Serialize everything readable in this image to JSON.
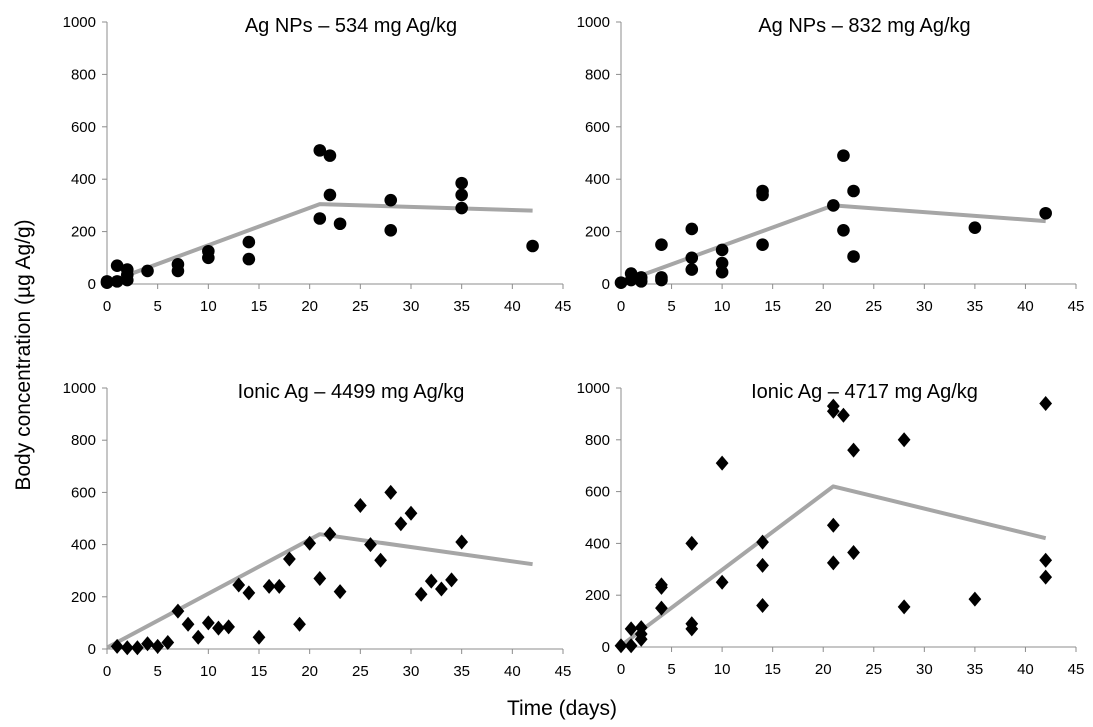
{
  "figure": {
    "ylabel": "Body concentration (µg Ag/g)",
    "xlabel": "Time (days)"
  },
  "style": {
    "model_line_color": "#a6a6a6",
    "marker_color": "#000000",
    "axis_color": "#8c8c8c"
  },
  "chart_data": [
    {
      "type": "scatter",
      "title": "Ag NPs – 534 mg Ag/kg",
      "marker": "circle",
      "xlim": [
        0,
        45
      ],
      "ylim": [
        0,
        1000
      ],
      "xticks": [
        0,
        5,
        10,
        15,
        20,
        25,
        30,
        35,
        40,
        45
      ],
      "yticks": [
        0,
        200,
        400,
        600,
        800,
        1000
      ],
      "points": [
        [
          0,
          5
        ],
        [
          0,
          10
        ],
        [
          1,
          10
        ],
        [
          1,
          70
        ],
        [
          2,
          15
        ],
        [
          2,
          35
        ],
        [
          2,
          55
        ],
        [
          4,
          50
        ],
        [
          7,
          50
        ],
        [
          7,
          75
        ],
        [
          10,
          100
        ],
        [
          10,
          125
        ],
        [
          14,
          95
        ],
        [
          14,
          160
        ],
        [
          21,
          510
        ],
        [
          21,
          250
        ],
        [
          22,
          490
        ],
        [
          22,
          340
        ],
        [
          23,
          230
        ],
        [
          28,
          320
        ],
        [
          28,
          205
        ],
        [
          35,
          385
        ],
        [
          35,
          340
        ],
        [
          35,
          290
        ],
        [
          42,
          145
        ]
      ],
      "line": [
        [
          0,
          5
        ],
        [
          21,
          305
        ],
        [
          42,
          280
        ]
      ]
    },
    {
      "type": "scatter",
      "title": "Ag NPs – 832 mg Ag/kg",
      "marker": "circle",
      "xlim": [
        0,
        45
      ],
      "ylim": [
        0,
        1000
      ],
      "xticks": [
        0,
        5,
        10,
        15,
        20,
        25,
        30,
        35,
        40,
        45
      ],
      "yticks": [
        0,
        200,
        400,
        600,
        800,
        1000
      ],
      "points": [
        [
          0,
          5
        ],
        [
          1,
          40
        ],
        [
          1,
          15
        ],
        [
          2,
          10
        ],
        [
          2,
          25
        ],
        [
          4,
          150
        ],
        [
          4,
          25
        ],
        [
          4,
          15
        ],
        [
          7,
          210
        ],
        [
          7,
          100
        ],
        [
          7,
          55
        ],
        [
          10,
          130
        ],
        [
          10,
          80
        ],
        [
          10,
          45
        ],
        [
          14,
          355
        ],
        [
          14,
          340
        ],
        [
          14,
          150
        ],
        [
          21,
          300
        ],
        [
          22,
          490
        ],
        [
          22,
          205
        ],
        [
          23,
          355
        ],
        [
          23,
          105
        ],
        [
          35,
          215
        ],
        [
          42,
          270
        ]
      ],
      "line": [
        [
          0,
          5
        ],
        [
          21,
          300
        ],
        [
          42,
          240
        ]
      ]
    },
    {
      "type": "scatter",
      "title": "Ionic Ag – 4499 mg Ag/kg",
      "marker": "diamond",
      "xlim": [
        0,
        45
      ],
      "ylim": [
        0,
        1000
      ],
      "xticks": [
        0,
        5,
        10,
        15,
        20,
        25,
        30,
        35,
        40,
        45
      ],
      "yticks": [
        0,
        200,
        400,
        600,
        800,
        1000
      ],
      "points": [
        [
          1,
          10
        ],
        [
          2,
          5
        ],
        [
          3,
          5
        ],
        [
          4,
          20
        ],
        [
          5,
          10
        ],
        [
          6,
          25
        ],
        [
          7,
          145
        ],
        [
          8,
          95
        ],
        [
          9,
          45
        ],
        [
          10,
          100
        ],
        [
          11,
          80
        ],
        [
          12,
          85
        ],
        [
          13,
          245
        ],
        [
          14,
          215
        ],
        [
          15,
          45
        ],
        [
          16,
          240
        ],
        [
          17,
          240
        ],
        [
          18,
          345
        ],
        [
          19,
          95
        ],
        [
          20,
          405
        ],
        [
          21,
          270
        ],
        [
          22,
          440
        ],
        [
          23,
          220
        ],
        [
          25,
          550
        ],
        [
          26,
          400
        ],
        [
          27,
          340
        ],
        [
          28,
          600
        ],
        [
          29,
          480
        ],
        [
          30,
          520
        ],
        [
          31,
          210
        ],
        [
          32,
          260
        ],
        [
          33,
          230
        ],
        [
          34,
          265
        ],
        [
          35,
          410
        ]
      ],
      "line": [
        [
          0,
          5
        ],
        [
          21,
          440
        ],
        [
          42,
          325
        ]
      ]
    },
    {
      "type": "scatter",
      "title": "Ionic Ag – 4717 mg Ag/kg",
      "marker": "diamond",
      "xlim": [
        0,
        45
      ],
      "ylim": [
        0,
        1000
      ],
      "xticks": [
        0,
        5,
        10,
        15,
        20,
        25,
        30,
        35,
        40,
        45
      ],
      "yticks": [
        0,
        200,
        400,
        600,
        800,
        1000
      ],
      "points": [
        [
          0,
          5
        ],
        [
          1,
          70
        ],
        [
          1,
          5
        ],
        [
          2,
          75
        ],
        [
          2,
          50
        ],
        [
          2,
          30
        ],
        [
          4,
          240
        ],
        [
          4,
          230
        ],
        [
          4,
          150
        ],
        [
          7,
          400
        ],
        [
          7,
          90
        ],
        [
          7,
          70
        ],
        [
          10,
          710
        ],
        [
          10,
          250
        ],
        [
          14,
          405
        ],
        [
          14,
          315
        ],
        [
          14,
          160
        ],
        [
          21,
          930
        ],
        [
          21,
          910
        ],
        [
          21,
          470
        ],
        [
          21,
          325
        ],
        [
          22,
          895
        ],
        [
          23,
          760
        ],
        [
          23,
          365
        ],
        [
          28,
          800
        ],
        [
          28,
          155
        ],
        [
          35,
          185
        ],
        [
          42,
          940
        ],
        [
          42,
          335
        ],
        [
          42,
          270
        ]
      ],
      "line": [
        [
          0,
          5
        ],
        [
          21,
          620
        ],
        [
          42,
          420
        ]
      ]
    }
  ]
}
